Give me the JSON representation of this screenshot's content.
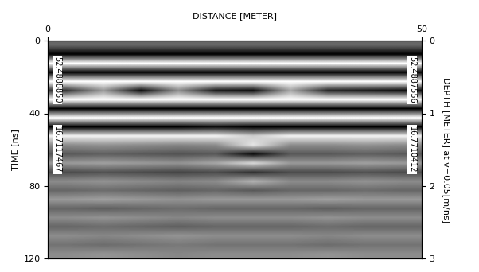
{
  "chart_data": {
    "type": "heatmap",
    "x_label": "DISTANCE [METER]",
    "y_label": "TIME [ns]",
    "y2_label": "DEPTH [METER] at v=0.05[m/ns]",
    "xlim": [
      0,
      50
    ],
    "xticks": [
      0,
      50
    ],
    "ylim": [
      120,
      0
    ],
    "yticks": [
      0,
      40,
      80,
      120
    ],
    "y2lim": [
      3,
      0
    ],
    "y2ticks": [
      0,
      1,
      2,
      3
    ],
    "grid": false,
    "annotations": {
      "left": [
        "52.4888850",
        "16.7117467"
      ],
      "right": [
        "52.4887556",
        "16.7710412"
      ]
    },
    "cells": [
      [
        -0.2,
        -0.2,
        -0.2,
        -0.2,
        -0.2,
        -0.2,
        -0.2,
        -0.2,
        -0.2,
        -0.2
      ],
      [
        -1,
        -1,
        -1,
        -1,
        -1,
        -1,
        -1,
        -1,
        -1,
        -1
      ],
      [
        1,
        1,
        1,
        1,
        1,
        1,
        1,
        1,
        1,
        1
      ],
      [
        -1,
        -1,
        -1,
        -1,
        -1,
        -1,
        -1,
        -1,
        -1,
        -1
      ],
      [
        1,
        1,
        1,
        1,
        1,
        1,
        1,
        1,
        1,
        1
      ],
      [
        -0.6,
        0.2,
        -0.9,
        0.1,
        -0.8,
        -0.9,
        0.3,
        -0.7,
        -0.8,
        -0.9
      ],
      [
        1,
        1,
        1,
        1,
        1,
        1,
        1,
        1,
        1,
        1
      ],
      [
        -1,
        -1,
        -1,
        -1,
        -1,
        -1,
        -1,
        -1,
        -1,
        -1
      ],
      [
        1,
        1,
        1,
        1,
        1,
        1,
        1,
        1,
        1,
        1
      ],
      [
        -1,
        -1,
        -1,
        -1,
        -0.9,
        -1,
        -1,
        -1,
        -1,
        -1
      ],
      [
        0.9,
        0.9,
        0.9,
        0.9,
        0.9,
        0.6,
        0.9,
        0.9,
        0.9,
        0.9
      ],
      [
        0.1,
        0.15,
        0.1,
        0.05,
        0.1,
        0.8,
        0.1,
        0.1,
        0.15,
        0.1
      ],
      [
        -0.3,
        -0.25,
        -0.3,
        -0.35,
        -0.3,
        -0.9,
        -0.3,
        -0.3,
        -0.25,
        -0.3
      ],
      [
        0.2,
        0.25,
        0.2,
        0.15,
        0.3,
        0.7,
        0.2,
        0.2,
        0.25,
        0.2
      ],
      [
        -0.4,
        -0.35,
        -0.4,
        -0.45,
        -0.4,
        -0.6,
        -0.4,
        -0.4,
        -0.35,
        -0.4
      ],
      [
        0.1,
        0.15,
        0.1,
        0.05,
        0.1,
        0.4,
        0.1,
        0.1,
        0.15,
        0.1
      ],
      [
        -0.2,
        -0.15,
        -0.2,
        -0.25,
        -0.2,
        -0.3,
        -0.2,
        -0.2,
        -0.15,
        -0.2
      ],
      [
        0.2,
        0.25,
        0.2,
        0.15,
        0.2,
        0.2,
        0.2,
        0.25,
        0.2,
        0.2
      ],
      [
        -0.2,
        -0.25,
        -0.2,
        -0.15,
        -0.2,
        -0.2,
        -0.2,
        -0.25,
        -0.2,
        -0.2
      ],
      [
        0.1,
        0.15,
        0.1,
        0.05,
        0.1,
        0.1,
        0.1,
        0.15,
        0.1,
        0.1
      ],
      [
        -0.2,
        -0.15,
        -0.2,
        -0.25,
        -0.2,
        -0.2,
        -0.2,
        -0.15,
        -0.2,
        -0.2
      ],
      [
        0.1,
        0.05,
        0.1,
        0.15,
        0.1,
        0.1,
        0.1,
        0.05,
        0.1,
        0.1
      ],
      [
        -0.1,
        -0.15,
        -0.1,
        -0.05,
        -0.1,
        -0.1,
        -0.1,
        -0.15,
        -0.1,
        -0.1
      ],
      [
        0.1,
        0.15,
        0.1,
        0.05,
        0.1,
        0.1,
        0.1,
        0.15,
        0.1,
        0.1
      ]
    ]
  }
}
